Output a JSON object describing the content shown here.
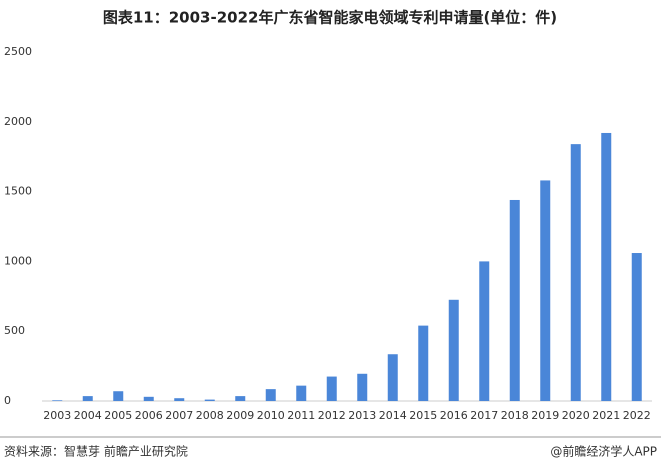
{
  "chart_data": {
    "type": "bar",
    "title": "图表11：2003-2022年广东省智能家电领域专利申请量(单位：件)",
    "categories": [
      "2003",
      "2004",
      "2005",
      "2006",
      "2007",
      "2008",
      "2009",
      "2010",
      "2011",
      "2012",
      "2013",
      "2014",
      "2015",
      "2016",
      "2017",
      "2018",
      "2019",
      "2020",
      "2021",
      "2022"
    ],
    "values": [
      5,
      35,
      70,
      30,
      20,
      10,
      35,
      85,
      110,
      175,
      195,
      335,
      540,
      725,
      1000,
      1440,
      1580,
      1840,
      1920,
      1060
    ],
    "color": "#4a86d8",
    "ylim": [
      0,
      2500
    ],
    "yticks": [
      0,
      500,
      1000,
      1500,
      2000,
      2500
    ],
    "grid": false,
    "source": "资料来源：智慧芽 前瞻产业研究院",
    "credit": "@前瞻经济学人APP"
  }
}
